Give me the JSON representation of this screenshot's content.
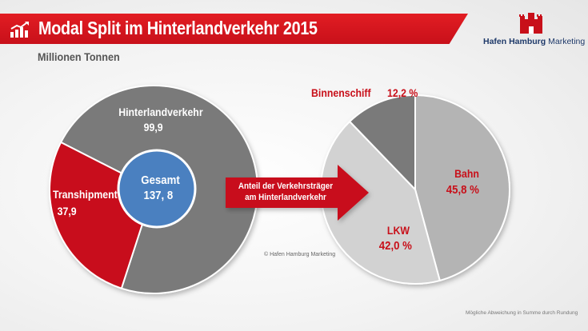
{
  "header": {
    "title": "Modal Split im Hinterlandverkehr 2015",
    "subtitle": "Millionen Tonnen",
    "title_icon": "bar-chart-up-icon",
    "bar_color": "#d7151d"
  },
  "logo": {
    "icon": "hamburg-castle-logo",
    "text_bold": "Hafen Hamburg",
    "text_regular": "Marketing"
  },
  "arrow": {
    "line1": "Anteil der Verkehrsträger",
    "line2": "am Hinterlandverkehr"
  },
  "copyright": "© Hafen Hamburg Marketing",
  "footnote": "Mögliche Abweichung in Summe durch Rundung",
  "chart_data": [
    {
      "type": "pie",
      "slices": [
        {
          "label": "Hinterlandverkehr",
          "value": 99.9,
          "value_text": "99,9",
          "color": "#7a7a7a"
        },
        {
          "label": "Transhipment",
          "value": 37.9,
          "value_text": "37,9",
          "color": "#c8101a"
        }
      ],
      "center": {
        "label": "Gesamt",
        "value": 137.8,
        "value_text": "137, 8",
        "color": "#4a80c0"
      }
    },
    {
      "type": "pie",
      "slices": [
        {
          "label": "Bahn",
          "value": 45.8,
          "value_text": "45,8 %",
          "color": "#b4b4b4"
        },
        {
          "label": "LKW",
          "value": 42.0,
          "value_text": "42,0 %",
          "color": "#d2d2d2"
        },
        {
          "label": "Binnenschiff",
          "value": 12.2,
          "value_text": "12,2 %",
          "color": "#7a7a7a"
        }
      ]
    }
  ]
}
